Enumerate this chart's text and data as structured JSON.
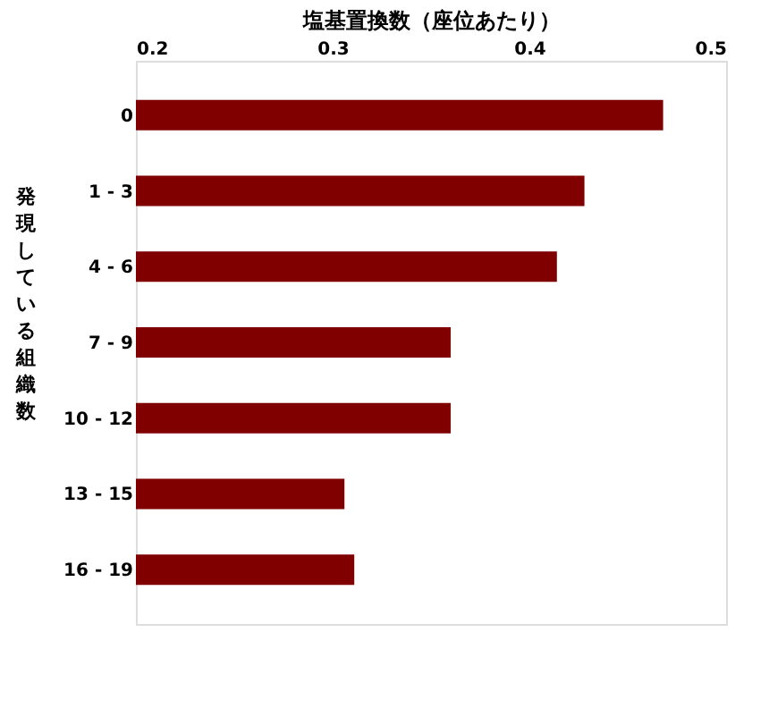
{
  "chart_data": {
    "type": "bar",
    "orientation": "horizontal",
    "xlabel": "塩基置換数（座位あたり）",
    "ylabel": "発現している組織数",
    "categories": [
      "0",
      "1 - 3",
      "4 - 6",
      "7 - 9",
      "10 - 12",
      "13 - 15",
      "16 - 19"
    ],
    "values": [
      0.468,
      0.428,
      0.414,
      0.36,
      0.36,
      0.306,
      0.311
    ],
    "color": "#800000",
    "xlim": [
      0.2,
      0.5
    ],
    "xticks": [
      0.2,
      0.3,
      0.4,
      0.5
    ],
    "grid": false
  }
}
